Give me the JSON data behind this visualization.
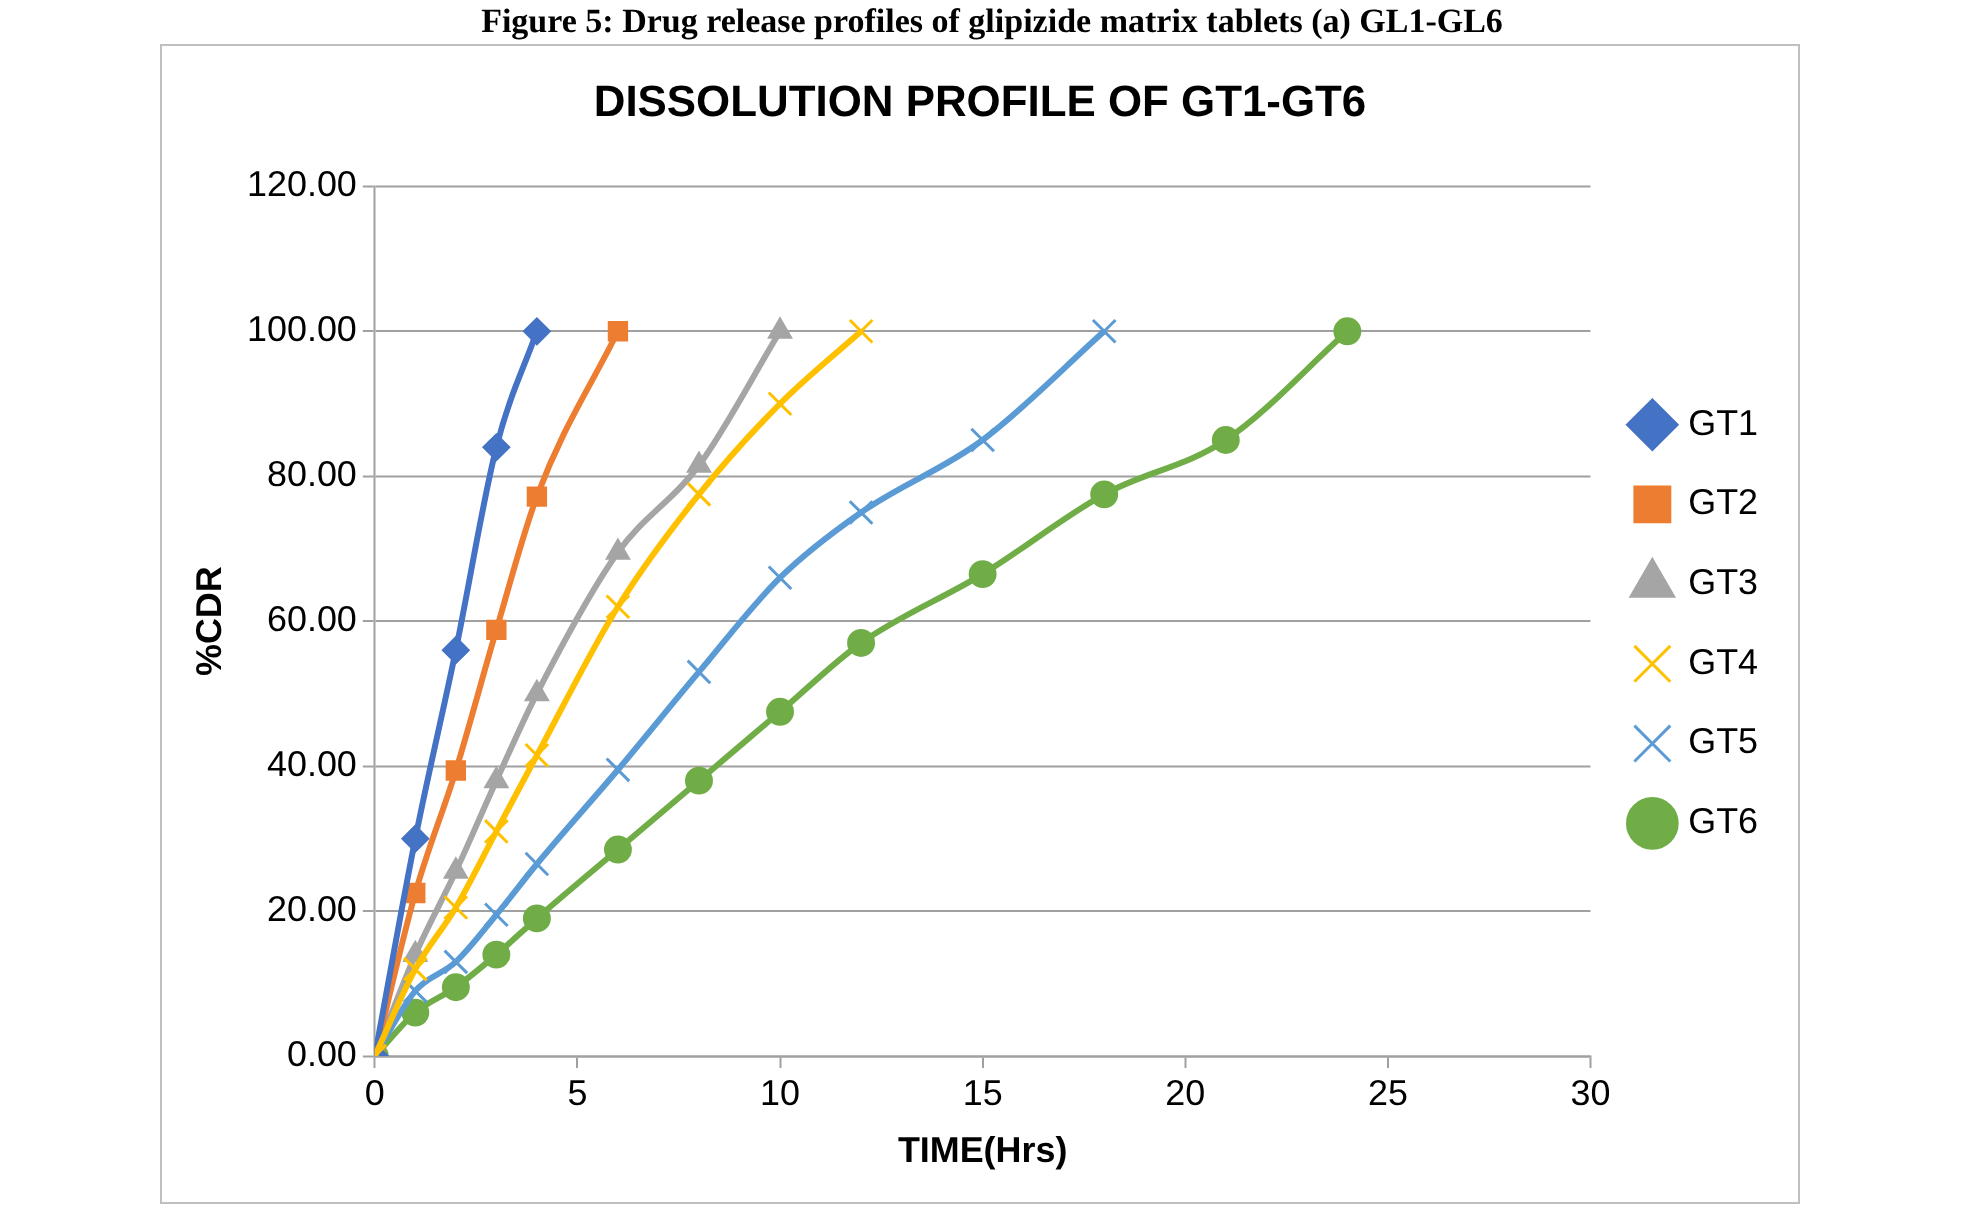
{
  "chart_data": {
    "type": "line",
    "title": "DISSOLUTION PROFILE OF GT1-GT6",
    "xlabel": "TIME(Hrs)",
    "ylabel": "%CDR",
    "annotations": [
      "Figure 5: Drug release profiles of glipizide matrix tablets (a) GL1-GL6"
    ],
    "xlim": [
      0,
      30
    ],
    "xticks": [
      0,
      5,
      10,
      15,
      20,
      25,
      30
    ],
    "ylim": [
      0,
      120
    ],
    "yticks": [
      {
        "value": 0,
        "label": "0.00"
      },
      {
        "value": 20,
        "label": "20.00"
      },
      {
        "value": 40,
        "label": "40.00"
      },
      {
        "value": 60,
        "label": "60.00"
      },
      {
        "value": 80,
        "label": "80.00"
      },
      {
        "value": 100,
        "label": "100.00"
      },
      {
        "value": 120,
        "label": "120.00"
      }
    ],
    "grid": "y",
    "legend": "right",
    "series": [
      {
        "name": "GT1",
        "color": "#4472c4",
        "marker": "diamond",
        "x": [
          0,
          1,
          2,
          3,
          4
        ],
        "values": [
          0,
          30,
          56,
          84,
          100
        ]
      },
      {
        "name": "GT2",
        "color": "#ed7d31",
        "marker": "square",
        "x": [
          0,
          1,
          2,
          3,
          4,
          6
        ],
        "values": [
          0,
          22.5,
          39.4,
          58.8,
          77.2,
          100
        ]
      },
      {
        "name": "GT3",
        "color": "#a5a5a5",
        "marker": "triangle",
        "x": [
          0,
          1,
          2,
          3,
          4,
          6,
          8,
          10
        ],
        "values": [
          0,
          14,
          25.5,
          38,
          50,
          69.5,
          81.5,
          100
        ]
      },
      {
        "name": "GT4",
        "color": "#ffc000",
        "marker": "cross",
        "x": [
          0,
          1,
          2,
          3,
          4,
          6,
          8,
          10,
          12
        ],
        "values": [
          0,
          12,
          20.5,
          31,
          41.5,
          62,
          77.5,
          90,
          100
        ]
      },
      {
        "name": "GT5",
        "color": "#5b9bd5",
        "marker": "cross",
        "x": [
          0,
          1,
          2,
          3,
          4,
          6,
          8,
          10,
          12,
          15,
          18
        ],
        "values": [
          0,
          9,
          13,
          19.5,
          26.5,
          39.5,
          53,
          66,
          75,
          85,
          100
        ]
      },
      {
        "name": "GT6",
        "color": "#70ad47",
        "marker": "circle",
        "x": [
          0,
          1,
          2,
          3,
          4,
          6,
          8,
          10,
          12,
          15,
          18,
          21,
          24
        ],
        "values": [
          0,
          6,
          9.5,
          14,
          19,
          28.5,
          38,
          47.5,
          57,
          66.5,
          77.5,
          85,
          100
        ]
      }
    ]
  }
}
